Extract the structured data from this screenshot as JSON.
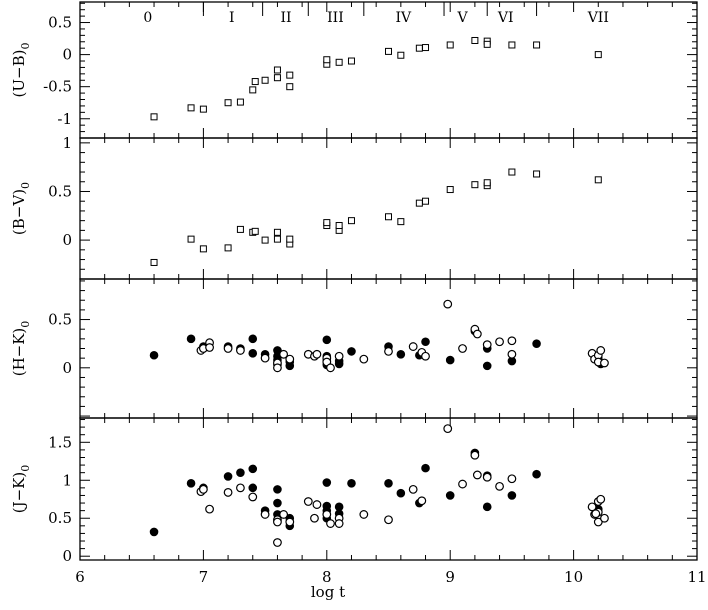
{
  "chart_data": {
    "type": "scatter",
    "xlabel": "log t",
    "xlim": [
      6,
      11
    ],
    "xticks": [
      "6",
      "7",
      "8",
      "9",
      "10",
      "11"
    ],
    "age_groups": {
      "labels": [
        "0",
        "I",
        "II",
        "III",
        "IV",
        "V",
        "VI",
        "VII"
      ],
      "label_x": [
        6.55,
        7.23,
        7.67,
        8.07,
        8.62,
        9.1,
        9.45,
        10.2
      ],
      "boundaries": [
        6.0,
        7.0,
        7.48,
        7.85,
        8.3,
        8.95,
        9.3,
        9.7,
        11.0
      ]
    },
    "panels": [
      {
        "id": "ub",
        "ylabel": "(U−B)",
        "ylabel_sub": "0",
        "ylim": [
          -1.3,
          0.82
        ],
        "yticks": [
          "-1",
          "-0.5",
          "0",
          "0.5"
        ],
        "series": [
          {
            "marker": "open-square",
            "points": [
              [
                6.6,
                -0.97
              ],
              [
                6.9,
                -0.83
              ],
              [
                7.0,
                -0.85
              ],
              [
                7.2,
                -0.75
              ],
              [
                7.3,
                -0.74
              ],
              [
                7.4,
                -0.55
              ],
              [
                7.42,
                -0.42
              ],
              [
                7.5,
                -0.4
              ],
              [
                7.6,
                -0.36
              ],
              [
                7.6,
                -0.24
              ],
              [
                7.7,
                -0.5
              ],
              [
                7.7,
                -0.32
              ],
              [
                8.0,
                -0.15
              ],
              [
                8.0,
                -0.08
              ],
              [
                8.1,
                -0.12
              ],
              [
                8.2,
                -0.1
              ],
              [
                8.5,
                0.05
              ],
              [
                8.6,
                -0.01
              ],
              [
                8.75,
                0.1
              ],
              [
                8.8,
                0.11
              ],
              [
                9.0,
                0.15
              ],
              [
                9.2,
                0.22
              ],
              [
                9.3,
                0.21
              ],
              [
                9.3,
                0.16
              ],
              [
                9.5,
                0.15
              ],
              [
                9.7,
                0.15
              ],
              [
                10.2,
                0.0
              ]
            ]
          }
        ]
      },
      {
        "id": "bv",
        "ylabel": "(B−V)",
        "ylabel_sub": "0",
        "ylim": [
          -0.4,
          1.05
        ],
        "yticks": [
          "0",
          "0.5",
          "1"
        ],
        "series": [
          {
            "marker": "open-square",
            "points": [
              [
                6.6,
                -0.23
              ],
              [
                6.9,
                0.01
              ],
              [
                7.0,
                -0.09
              ],
              [
                7.2,
                -0.08
              ],
              [
                7.3,
                0.11
              ],
              [
                7.4,
                0.08
              ],
              [
                7.42,
                0.09
              ],
              [
                7.5,
                0.0
              ],
              [
                7.6,
                0.08
              ],
              [
                7.6,
                0.01
              ],
              [
                7.7,
                -0.04
              ],
              [
                7.7,
                0.01
              ],
              [
                8.0,
                0.15
              ],
              [
                8.0,
                0.18
              ],
              [
                8.1,
                0.1
              ],
              [
                8.1,
                0.15
              ],
              [
                8.2,
                0.2
              ],
              [
                8.5,
                0.24
              ],
              [
                8.6,
                0.19
              ],
              [
                8.75,
                0.38
              ],
              [
                8.8,
                0.4
              ],
              [
                9.0,
                0.52
              ],
              [
                9.2,
                0.57
              ],
              [
                9.3,
                0.56
              ],
              [
                9.3,
                0.59
              ],
              [
                9.5,
                0.7
              ],
              [
                9.7,
                0.68
              ],
              [
                10.2,
                0.62
              ]
            ]
          }
        ]
      },
      {
        "id": "hk",
        "ylabel": "(H−K)",
        "ylabel_sub": "0",
        "ylim": [
          -0.52,
          0.92
        ],
        "yticks": [
          "0",
          "0.5"
        ],
        "series": [
          {
            "marker": "filled-circle",
            "points": [
              [
                6.6,
                0.13
              ],
              [
                6.9,
                0.3
              ],
              [
                7.0,
                0.22
              ],
              [
                7.2,
                0.22
              ],
              [
                7.3,
                0.2
              ],
              [
                7.4,
                0.3
              ],
              [
                7.4,
                0.15
              ],
              [
                7.5,
                0.14
              ],
              [
                7.6,
                0.18
              ],
              [
                7.6,
                0.12
              ],
              [
                7.6,
                0.08
              ],
              [
                7.6,
                0.03
              ],
              [
                7.7,
                0.06
              ],
              [
                7.7,
                0.02
              ],
              [
                8.0,
                0.29
              ],
              [
                8.0,
                0.12
              ],
              [
                8.0,
                0.07
              ],
              [
                8.0,
                0.03
              ],
              [
                8.1,
                0.07
              ],
              [
                8.1,
                0.04
              ],
              [
                8.2,
                0.17
              ],
              [
                8.5,
                0.22
              ],
              [
                8.6,
                0.14
              ],
              [
                8.75,
                0.13
              ],
              [
                8.8,
                0.27
              ],
              [
                9.0,
                0.08
              ],
              [
                9.2,
                0.38
              ],
              [
                9.3,
                0.2
              ],
              [
                9.3,
                0.02
              ],
              [
                9.5,
                0.07
              ],
              [
                9.7,
                0.25
              ],
              [
                10.2,
                0.1
              ],
              [
                10.22,
                0.04
              ]
            ]
          },
          {
            "marker": "open-circle",
            "points": [
              [
                6.98,
                0.18
              ],
              [
                7.0,
                0.2
              ],
              [
                7.05,
                0.26
              ],
              [
                7.05,
                0.21
              ],
              [
                7.2,
                0.2
              ],
              [
                7.3,
                0.18
              ],
              [
                7.5,
                0.1
              ],
              [
                7.6,
                0.05
              ],
              [
                7.6,
                0.0
              ],
              [
                7.65,
                0.14
              ],
              [
                7.7,
                0.09
              ],
              [
                7.85,
                0.14
              ],
              [
                7.9,
                0.12
              ],
              [
                7.92,
                0.14
              ],
              [
                8.0,
                0.1
              ],
              [
                8.0,
                0.06
              ],
              [
                8.03,
                0.0
              ],
              [
                8.1,
                0.12
              ],
              [
                8.3,
                0.09
              ],
              [
                8.5,
                0.17
              ],
              [
                8.7,
                0.22
              ],
              [
                8.77,
                0.16
              ],
              [
                8.8,
                0.12
              ],
              [
                8.98,
                0.66
              ],
              [
                9.1,
                0.2
              ],
              [
                9.2,
                0.4
              ],
              [
                9.22,
                0.35
              ],
              [
                9.3,
                0.24
              ],
              [
                9.4,
                0.27
              ],
              [
                9.5,
                0.28
              ],
              [
                9.5,
                0.14
              ],
              [
                10.15,
                0.15
              ],
              [
                10.17,
                0.09
              ],
              [
                10.2,
                0.13
              ],
              [
                10.22,
                0.18
              ],
              [
                10.2,
                0.06
              ],
              [
                10.25,
                0.05
              ]
            ]
          }
        ]
      },
      {
        "id": "jk",
        "ylabel": "(J−K)",
        "ylabel_sub": "0",
        "ylim": [
          -0.05,
          1.82
        ],
        "yticks": [
          "0",
          "0.5",
          "1",
          "1.5"
        ],
        "series": [
          {
            "marker": "filled-circle",
            "points": [
              [
                6.6,
                0.32
              ],
              [
                6.9,
                0.96
              ],
              [
                7.0,
                0.9
              ],
              [
                7.2,
                1.05
              ],
              [
                7.3,
                1.1
              ],
              [
                7.4,
                1.15
              ],
              [
                7.4,
                0.9
              ],
              [
                7.5,
                0.6
              ],
              [
                7.6,
                0.88
              ],
              [
                7.6,
                0.7
              ],
              [
                7.6,
                0.55
              ],
              [
                7.7,
                0.5
              ],
              [
                7.7,
                0.4
              ],
              [
                8.0,
                0.97
              ],
              [
                8.0,
                0.66
              ],
              [
                8.0,
                0.6
              ],
              [
                8.0,
                0.5
              ],
              [
                8.1,
                0.65
              ],
              [
                8.1,
                0.56
              ],
              [
                8.2,
                0.96
              ],
              [
                8.5,
                0.96
              ],
              [
                8.6,
                0.83
              ],
              [
                8.75,
                0.7
              ],
              [
                8.8,
                1.16
              ],
              [
                9.0,
                0.8
              ],
              [
                9.2,
                1.36
              ],
              [
                9.3,
                1.06
              ],
              [
                9.3,
                0.65
              ],
              [
                9.5,
                0.8
              ],
              [
                9.7,
                1.08
              ],
              [
                10.2,
                0.62
              ]
            ]
          },
          {
            "marker": "open-circle",
            "points": [
              [
                6.98,
                0.85
              ],
              [
                7.0,
                0.88
              ],
              [
                7.05,
                0.62
              ],
              [
                7.2,
                0.84
              ],
              [
                7.3,
                0.9
              ],
              [
                7.4,
                0.78
              ],
              [
                7.5,
                0.55
              ],
              [
                7.6,
                0.48
              ],
              [
                7.6,
                0.45
              ],
              [
                7.6,
                0.18
              ],
              [
                7.65,
                0.55
              ],
              [
                7.7,
                0.45
              ],
              [
                7.85,
                0.72
              ],
              [
                7.9,
                0.5
              ],
              [
                7.92,
                0.68
              ],
              [
                8.0,
                0.55
              ],
              [
                8.03,
                0.43
              ],
              [
                8.1,
                0.5
              ],
              [
                8.1,
                0.43
              ],
              [
                8.3,
                0.55
              ],
              [
                8.5,
                0.48
              ],
              [
                8.7,
                0.88
              ],
              [
                8.77,
                0.73
              ],
              [
                8.98,
                1.68
              ],
              [
                9.1,
                0.95
              ],
              [
                9.2,
                1.33
              ],
              [
                9.22,
                1.07
              ],
              [
                9.3,
                1.04
              ],
              [
                9.4,
                0.92
              ],
              [
                9.5,
                1.02
              ],
              [
                10.15,
                0.65
              ],
              [
                10.17,
                0.55
              ],
              [
                10.2,
                0.72
              ],
              [
                10.22,
                0.75
              ],
              [
                10.2,
                0.58
              ],
              [
                10.2,
                0.45
              ],
              [
                10.25,
                0.5
              ],
              [
                10.18,
                0.56
              ]
            ]
          }
        ]
      }
    ]
  }
}
